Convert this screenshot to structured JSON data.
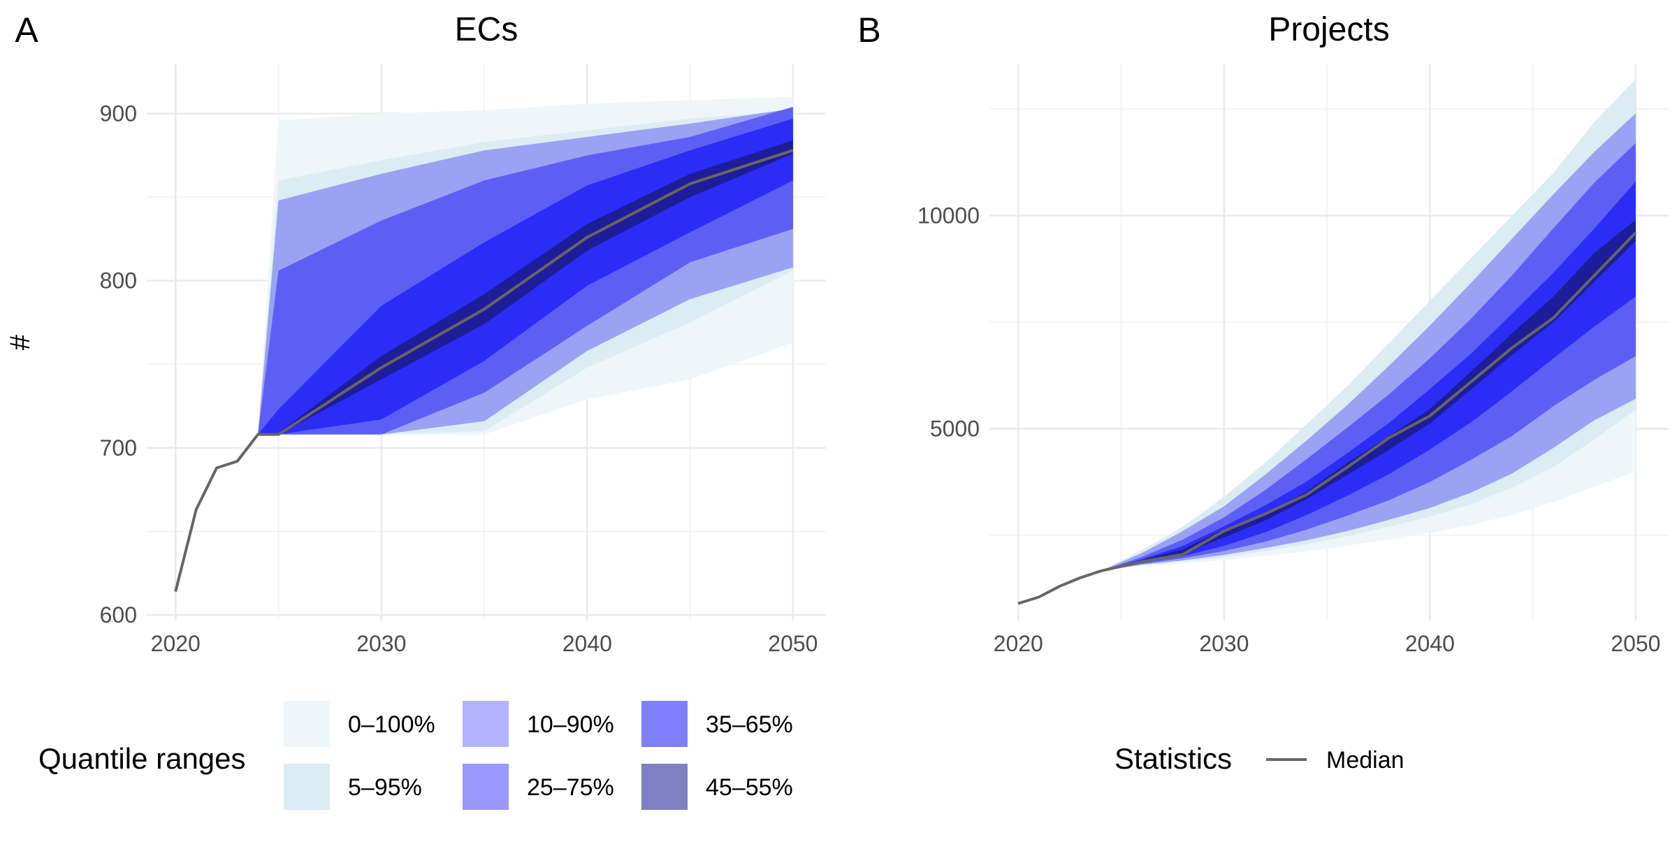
{
  "panels": [
    {
      "tag": "A",
      "title": "ECs",
      "ylabel": "#",
      "xlim": [
        2018.6,
        2051.6
      ],
      "ylim": [
        596.7,
        929.5
      ],
      "xticks": [
        2020,
        2030,
        2040,
        2050
      ],
      "xticks_minor": [
        2025,
        2035,
        2045
      ],
      "yticks": [
        600,
        700,
        800,
        900
      ],
      "yticks_minor": [
        650,
        750,
        850
      ],
      "ytick_labels": [
        "600",
        "700",
        "800",
        "900"
      ],
      "xtick_labels": [
        "2020",
        "2030",
        "2040",
        "2050"
      ],
      "median_historical": {
        "x": [
          2020,
          2021,
          2022,
          2023,
          2024
        ],
        "y": [
          614,
          663,
          688,
          692,
          708
        ]
      },
      "forecast_x": [
        2024,
        2025,
        2030,
        2035,
        2040,
        2045,
        2050
      ],
      "bands": [
        {
          "range": "0–100%",
          "lower": [
            708,
            708,
            708,
            708,
            729,
            741,
            763
          ],
          "upper": [
            708,
            896,
            900,
            902,
            906,
            908,
            910
          ]
        },
        {
          "range": "5–95%",
          "lower": [
            708,
            708,
            708,
            710,
            748,
            775,
            806
          ],
          "upper": [
            708,
            860,
            872,
            883,
            890,
            897,
            902
          ]
        },
        {
          "range": "10–90%",
          "lower": [
            708,
            708,
            708,
            716,
            758,
            789,
            808
          ],
          "upper": [
            708,
            848,
            864,
            878,
            886,
            894,
            903
          ]
        },
        {
          "range": "25–75%",
          "lower": [
            708,
            708,
            708,
            733,
            773,
            811,
            831
          ],
          "upper": [
            708,
            806,
            836,
            860,
            875,
            886,
            904
          ]
        },
        {
          "range": "35–65%",
          "lower": [
            708,
            708,
            717,
            752,
            797,
            829,
            860
          ],
          "upper": [
            708,
            723,
            785,
            823,
            857,
            878,
            897
          ]
        },
        {
          "range": "45–55%",
          "lower": [
            708,
            708,
            741,
            774,
            818,
            850,
            876
          ],
          "upper": [
            708,
            709,
            755,
            792,
            834,
            864,
            884
          ]
        }
      ],
      "median_forecast": [
        708,
        708,
        748,
        783,
        826,
        858,
        878
      ]
    },
    {
      "tag": "B",
      "title": "Projects",
      "ylabel": "",
      "xlim": [
        2018.6,
        2051.6
      ],
      "ylim": [
        500,
        13550
      ],
      "xticks": [
        2020,
        2030,
        2040,
        2050
      ],
      "xticks_minor": [
        2025,
        2035,
        2045
      ],
      "yticks": [
        5000,
        10000
      ],
      "yticks_minor": [
        2500,
        7500,
        12500
      ],
      "ytick_labels": [
        "5000",
        "10000"
      ],
      "xtick_labels": [
        "2020",
        "2030",
        "2040",
        "2050"
      ],
      "median_historical": {
        "x": [
          2020,
          2021,
          2022,
          2023,
          2024
        ],
        "y": [
          900,
          1050,
          1300,
          1500,
          1660
        ]
      },
      "forecast_x": [
        2024,
        2026,
        2028,
        2030,
        2032,
        2034,
        2036,
        2038,
        2040,
        2042,
        2044,
        2046,
        2048,
        2050
      ],
      "bands": [
        {
          "range": "0–100%",
          "lower": [
            1660,
            1780,
            1840,
            1920,
            2020,
            2120,
            2260,
            2400,
            2560,
            2740,
            2980,
            3280,
            3640,
            4000
          ],
          "upper": [
            1660,
            2150,
            2700,
            3400,
            4200,
            5100,
            6000,
            7000,
            8000,
            9000,
            10000,
            11000,
            12200,
            13200
          ]
        },
        {
          "range": "5–95%",
          "lower": [
            1660,
            1800,
            1880,
            1980,
            2130,
            2290,
            2480,
            2700,
            2940,
            3230,
            3620,
            4100,
            4750,
            5450
          ]
        },
        {
          "range": "10–90%",
          "lower": [
            1660,
            1810,
            1910,
            2040,
            2200,
            2380,
            2600,
            2860,
            3140,
            3500,
            3950,
            4550,
            5200,
            5700
          ],
          "upper": [
            1660,
            2080,
            2600,
            3180,
            3920,
            4720,
            5560,
            6470,
            7420,
            8420,
            9460,
            10500,
            11500,
            12400
          ]
        },
        {
          "range": "25–75%",
          "lower": [
            1660,
            1830,
            1960,
            2130,
            2350,
            2630,
            2960,
            3320,
            3750,
            4270,
            4830,
            5530,
            6150,
            6700
          ],
          "upper": [
            1660,
            1990,
            2400,
            2920,
            3560,
            4280,
            5030,
            5800,
            6650,
            7580,
            8600,
            9700,
            10780,
            11700
          ]
        },
        {
          "range": "35–65%",
          "lower": [
            1660,
            1850,
            2010,
            2250,
            2570,
            2970,
            3430,
            3930,
            4510,
            5150,
            5880,
            6650,
            7400,
            8100
          ],
          "upper": [
            1660,
            1940,
            2250,
            2710,
            3200,
            3760,
            4430,
            5130,
            5930,
            6760,
            7700,
            8660,
            9700,
            10800
          ]
        },
        {
          "range": "45–55%",
          "lower": [
            1660,
            1880,
            2070,
            2450,
            2850,
            3340,
            3920,
            4500,
            5120,
            5920,
            6730,
            7500,
            8450,
            9400
          ],
          "upper": [
            1660,
            1920,
            2170,
            2640,
            3000,
            3520,
            4200,
            4820,
            5460,
            6340,
            7240,
            8100,
            9130,
            9900
          ]
        }
      ],
      "median_forecast": [
        1660,
        1880,
        2050,
        2600,
        3000,
        3450,
        4100,
        4780,
        5300,
        6100,
        6900,
        7600,
        8600,
        9600
      ]
    }
  ],
  "legend_quantiles": {
    "title": "Quantile ranges",
    "items": [
      {
        "label": "0–100%",
        "color": "#eef6f9"
      },
      {
        "label": "10–90%",
        "color": "#b1b2ff"
      },
      {
        "label": "35–65%",
        "color": "#7f7ffd"
      },
      {
        "label": "5–95%",
        "color": "#dcecf3"
      },
      {
        "label": "25–75%",
        "color": "#9898fe"
      },
      {
        "label": "45–55%",
        "color": "#7f7fc2"
      }
    ]
  },
  "legend_statistics": {
    "title": "Statistics",
    "items": [
      {
        "label": "Median",
        "color": "#666666"
      }
    ]
  },
  "band_fill_colors": {
    "0–100%": "#eef6f9",
    "5–95%": "#dcecf3",
    "10–90%": "#9aa2f3",
    "25–75%": "#5d5ff4",
    "35–65%": "#2c2cf7",
    "45–55%": "#1d1d9a"
  },
  "median_color": "#666666",
  "grid_color": "#ebebeb"
}
